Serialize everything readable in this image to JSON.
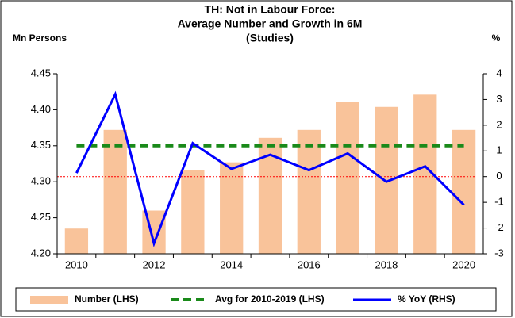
{
  "chart_data": {
    "type": "bar_line",
    "title": [
      "TH: Not in Labour Force:",
      "Average Number and Growth in 6M",
      "(Studies)"
    ],
    "y_label": "Mn Persons",
    "y2_label": "%",
    "categories": [
      "2010",
      null,
      "2012",
      null,
      "2014",
      null,
      "2016",
      null,
      "2018",
      null,
      "2020"
    ],
    "series": [
      {
        "name": "Number (LHS)",
        "type": "bar",
        "color": "#f9c39a",
        "values": [
          4.235,
          4.372,
          4.26,
          4.316,
          4.327,
          4.361,
          4.372,
          4.411,
          4.404,
          4.421,
          4.372
        ]
      },
      {
        "name": "Avg for 2010-2019 (LHS)",
        "type": "dashed_line",
        "color": "#1a8a1a",
        "values": [
          4.35,
          4.35,
          4.35,
          4.35,
          4.35,
          4.35,
          4.35,
          4.35,
          4.35,
          4.35,
          4.35
        ]
      },
      {
        "name": "% YoY (RHS)",
        "type": "line",
        "axis": "y2",
        "color": "#0000ff",
        "values": [
          0.14,
          3.2,
          -2.6,
          1.3,
          0.3,
          0.85,
          0.25,
          0.9,
          -0.2,
          0.4,
          -1.1
        ]
      }
    ],
    "ylim": [
      4.2,
      4.45
    ],
    "yticks": [
      {
        "value": 4.2,
        "label": "4.20"
      },
      {
        "value": 4.25,
        "label": "4.25"
      },
      {
        "value": 4.3,
        "label": "4.30"
      },
      {
        "value": 4.35,
        "label": "4.35"
      },
      {
        "value": 4.4,
        "label": "4.40"
      },
      {
        "value": 4.45,
        "label": "4.45"
      }
    ],
    "y2lim": [
      -3,
      4
    ],
    "y2ticks": [
      -3,
      -2,
      -1,
      0,
      1,
      2,
      3,
      4
    ],
    "zero_line": true,
    "zero_line_color": "#ff0000"
  }
}
